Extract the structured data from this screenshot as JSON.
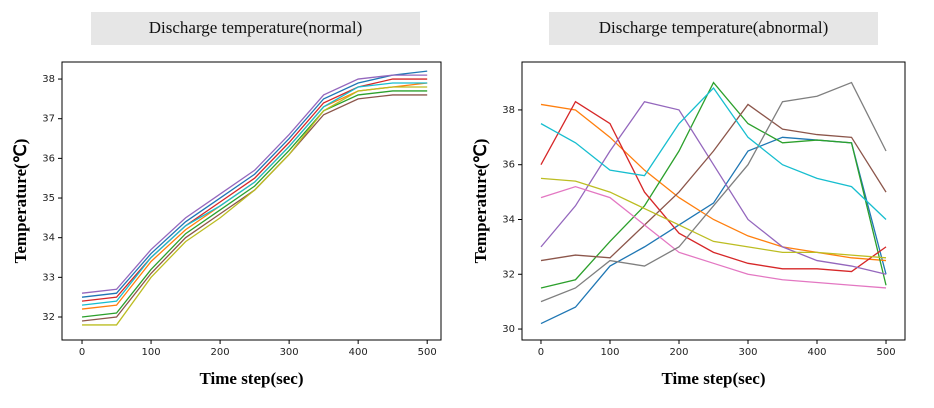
{
  "chart_data": [
    {
      "type": "line",
      "title": "Discharge temperature(normal)",
      "xlabel": "Time step(sec)",
      "ylabel": "Temperature(℃)",
      "x": [
        0,
        50,
        100,
        150,
        200,
        250,
        300,
        350,
        400,
        450,
        500
      ],
      "xlim": [
        -29,
        520
      ],
      "ylim": [
        31.42,
        38.43
      ],
      "xticks": [
        0,
        100,
        200,
        300,
        400,
        500
      ],
      "yticks": [
        32,
        33,
        34,
        35,
        36,
        37,
        38
      ],
      "series": [
        {
          "color": "#1f77b4",
          "values": [
            32.5,
            32.6,
            33.6,
            34.4,
            35.0,
            35.6,
            36.5,
            37.5,
            37.9,
            38.1,
            38.2
          ]
        },
        {
          "color": "#ff7f0e",
          "values": [
            32.2,
            32.3,
            33.4,
            34.2,
            34.8,
            35.4,
            36.3,
            37.3,
            37.7,
            37.8,
            37.9
          ]
        },
        {
          "color": "#2ca02c",
          "values": [
            32.0,
            32.1,
            33.2,
            34.1,
            34.7,
            35.3,
            36.2,
            37.2,
            37.6,
            37.7,
            37.7
          ]
        },
        {
          "color": "#d62728",
          "values": [
            32.4,
            32.5,
            33.5,
            34.3,
            34.9,
            35.5,
            36.4,
            37.4,
            37.8,
            38.0,
            38.0
          ]
        },
        {
          "color": "#9467bd",
          "values": [
            32.6,
            32.7,
            33.7,
            34.5,
            35.1,
            35.7,
            36.6,
            37.6,
            38.0,
            38.1,
            38.1
          ]
        },
        {
          "color": "#8c564b",
          "values": [
            31.9,
            32.0,
            33.1,
            34.0,
            34.6,
            35.2,
            36.1,
            37.1,
            37.5,
            37.6,
            37.6
          ]
        },
        {
          "color": "#17becf",
          "values": [
            32.3,
            32.4,
            33.5,
            34.3,
            34.8,
            35.4,
            36.3,
            37.3,
            37.8,
            37.9,
            37.9
          ]
        },
        {
          "color": "#bcbd22",
          "values": [
            31.8,
            31.8,
            33.0,
            33.9,
            34.5,
            35.2,
            36.1,
            37.2,
            37.7,
            37.8,
            37.8
          ]
        }
      ]
    },
    {
      "type": "line",
      "title": "Discharge temperature(abnormal)",
      "xlabel": "Time step(sec)",
      "ylabel": "Temperature(℃)",
      "x": [
        0,
        50,
        100,
        150,
        200,
        250,
        300,
        350,
        400,
        450,
        500
      ],
      "xlim": [
        -27.5,
        527.5
      ],
      "ylim": [
        29.6,
        39.75
      ],
      "xticks": [
        0,
        100,
        200,
        300,
        400,
        500
      ],
      "yticks": [
        30,
        32,
        34,
        36,
        38
      ],
      "series": [
        {
          "color": "#1f77b4",
          "values": [
            30.2,
            30.8,
            32.3,
            33.0,
            33.8,
            34.6,
            36.5,
            37.0,
            36.9,
            36.8,
            32.0
          ]
        },
        {
          "color": "#ff7f0e",
          "values": [
            38.2,
            38.0,
            37.0,
            35.8,
            34.8,
            34.0,
            33.4,
            33.0,
            32.8,
            32.6,
            32.5
          ]
        },
        {
          "color": "#2ca02c",
          "values": [
            31.5,
            31.8,
            33.2,
            34.5,
            36.5,
            39.0,
            37.5,
            36.8,
            36.9,
            36.8,
            31.6
          ]
        },
        {
          "color": "#d62728",
          "values": [
            36.0,
            38.3,
            37.5,
            35.0,
            33.5,
            32.8,
            32.4,
            32.2,
            32.2,
            32.1,
            33.0
          ]
        },
        {
          "color": "#9467bd",
          "values": [
            33.0,
            34.5,
            36.5,
            38.3,
            38.0,
            36.0,
            34.0,
            33.0,
            32.5,
            32.3,
            32.0
          ]
        },
        {
          "color": "#8c564b",
          "values": [
            32.5,
            32.7,
            32.6,
            33.8,
            35.0,
            36.5,
            38.2,
            37.3,
            37.1,
            37.0,
            35.0
          ]
        },
        {
          "color": "#e377c2",
          "values": [
            34.8,
            35.2,
            34.8,
            33.8,
            32.8,
            32.4,
            32.0,
            31.8,
            31.7,
            31.6,
            31.5
          ]
        },
        {
          "color": "#7f7f7f",
          "values": [
            31.0,
            31.5,
            32.5,
            32.3,
            33.0,
            34.5,
            36.0,
            38.3,
            38.5,
            39.0,
            36.5
          ]
        },
        {
          "color": "#bcbd22",
          "values": [
            35.5,
            35.4,
            35.0,
            34.4,
            33.8,
            33.2,
            33.0,
            32.8,
            32.8,
            32.7,
            32.6
          ]
        },
        {
          "color": "#17becf",
          "values": [
            37.5,
            36.8,
            35.8,
            35.6,
            37.5,
            38.8,
            37.0,
            36.0,
            35.5,
            35.2,
            34.0
          ]
        }
      ]
    }
  ]
}
